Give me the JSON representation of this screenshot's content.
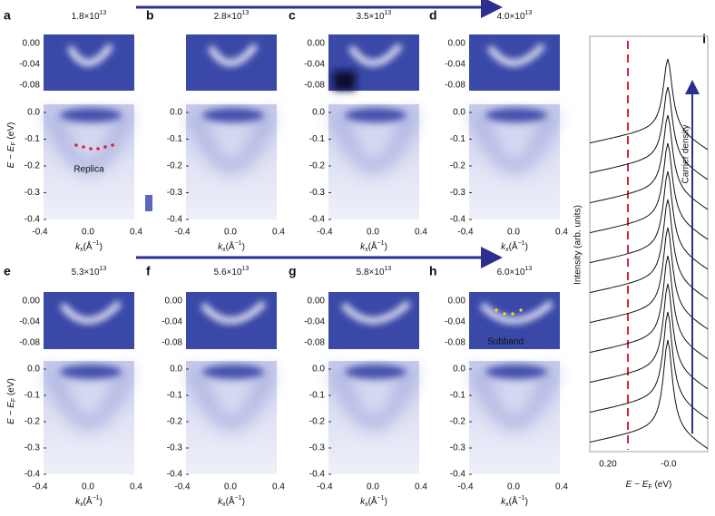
{
  "panels": [
    {
      "letter": "a",
      "density": {
        "base": "1.8×10",
        "exponent": "13"
      },
      "annotation": "Replica"
    },
    {
      "letter": "b",
      "density": {
        "base": "2.8×10",
        "exponent": "13"
      }
    },
    {
      "letter": "c",
      "density": {
        "base": "3.5×10",
        "exponent": "13"
      }
    },
    {
      "letter": "d",
      "density": {
        "base": "4.0×10",
        "exponent": "13"
      }
    },
    {
      "letter": "e",
      "density": {
        "base": "5.3×10",
        "exponent": "13"
      }
    },
    {
      "letter": "f",
      "density": {
        "base": "5.6×10",
        "exponent": "13"
      }
    },
    {
      "letter": "g",
      "density": {
        "base": "5.8×10",
        "exponent": "13"
      }
    },
    {
      "letter": "h",
      "density": {
        "base": "6.0×10",
        "exponent": "13"
      },
      "annotation": "Subband"
    }
  ],
  "axes": {
    "top_yticks": [
      "0.00",
      "-0.04",
      "-0.08"
    ],
    "bottom_yticks": [
      "0.0",
      "-0.1",
      "-0.2",
      "-0.3",
      "-0.4"
    ],
    "xticks": [
      "-0.4",
      "0.0",
      "0.4"
    ],
    "y_label": {
      "main": "E − E",
      "sub": "F",
      "unit": " (eV)"
    },
    "x_label": {
      "main": "k",
      "sub": "x",
      "unit": "(Å",
      "sup": "−1",
      "close": ")"
    }
  },
  "panel_i": {
    "letter": "i",
    "xticks": [
      "0.20",
      "-0.0"
    ],
    "x_label": {
      "main": "E − E",
      "sub": "F",
      "unit": " (eV)"
    },
    "y_label": "Intensity (arb. units)",
    "arrow_label": "Carrier density"
  }
}
